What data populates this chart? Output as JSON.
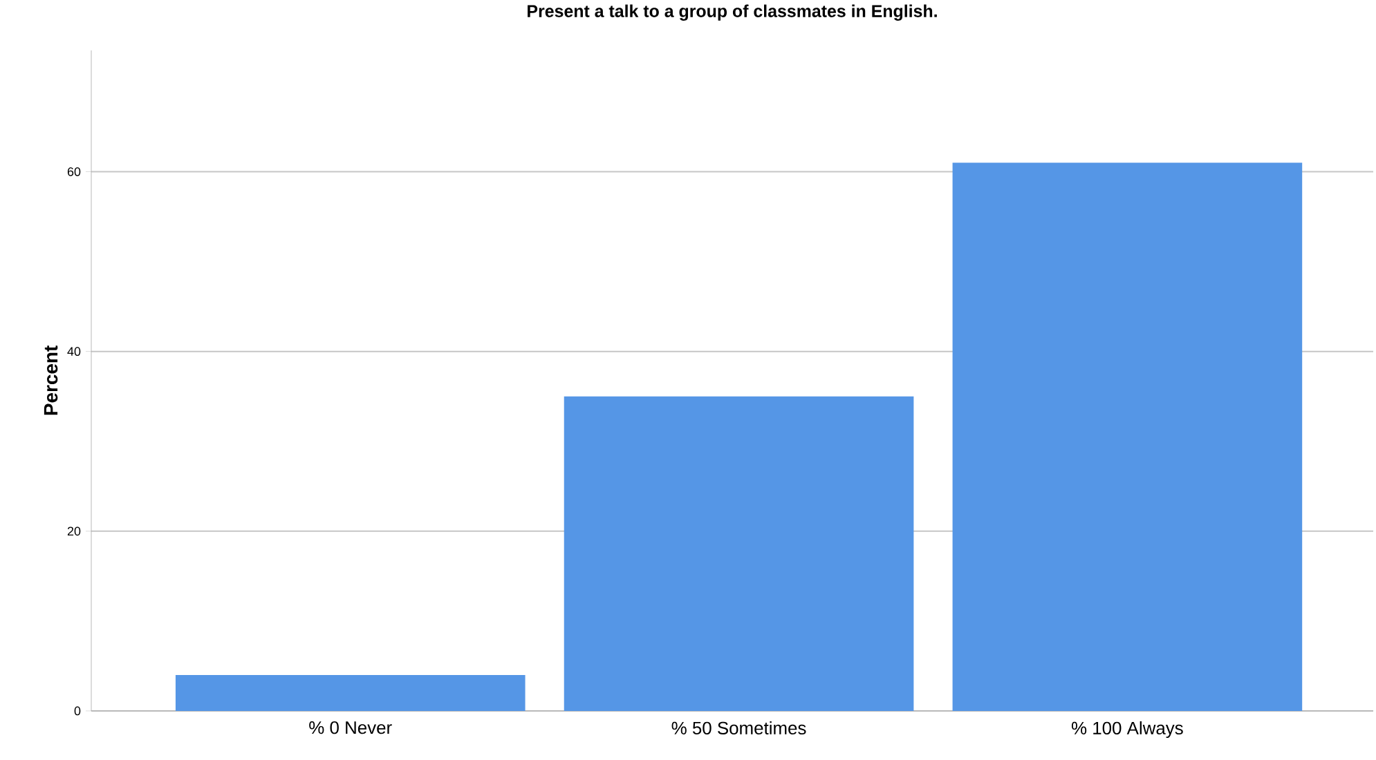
{
  "chart_data": {
    "type": "bar",
    "title": "Present a talk to a group of classmates in English.",
    "ylabel": "Percent",
    "categories": [
      "% 0 Never",
      "% 50 Sometimes",
      "% 100 Always"
    ],
    "values": [
      4,
      35,
      61
    ],
    "color": "#5596e6",
    "ylim": [
      0,
      73.5
    ],
    "yticks": [
      0,
      20,
      40,
      60
    ],
    "grid": "y"
  }
}
